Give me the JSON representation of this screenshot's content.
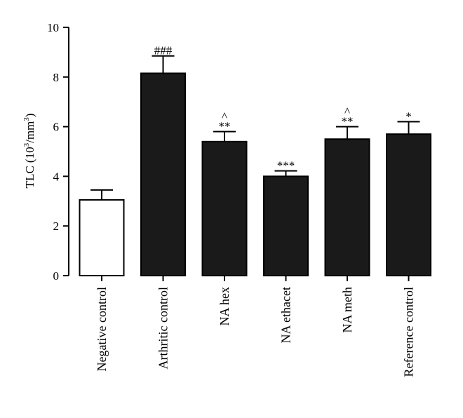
{
  "chart_data": {
    "type": "bar",
    "title": "",
    "xlabel": "",
    "ylabel_main": "TLC (10",
    "ylabel_sup1": "3",
    "ylabel_mid": "/mm",
    "ylabel_sup2": "3",
    "ylabel_end": ")",
    "ylim": [
      0,
      10
    ],
    "yticks": [
      "0",
      "2",
      "4",
      "6",
      "8",
      "10"
    ],
    "grid": false,
    "categories": [
      "Negative control",
      "Arthritic control",
      "NA hex",
      "NA ethacet",
      "NA meth",
      "Reference control"
    ],
    "values": [
      3.05,
      8.15,
      5.4,
      4.0,
      5.5,
      5.7
    ],
    "errors": [
      0.4,
      0.7,
      0.4,
      0.22,
      0.5,
      0.5
    ],
    "fills": [
      "#ffffff",
      "#1a1a1a",
      "#1a1a1a",
      "#1a1a1a",
      "#1a1a1a",
      "#1a1a1a"
    ],
    "annotations": [
      [],
      [
        "###"
      ],
      [
        "^",
        "**"
      ],
      [
        "***"
      ],
      [
        "^",
        "**"
      ],
      [
        "*"
      ]
    ]
  }
}
